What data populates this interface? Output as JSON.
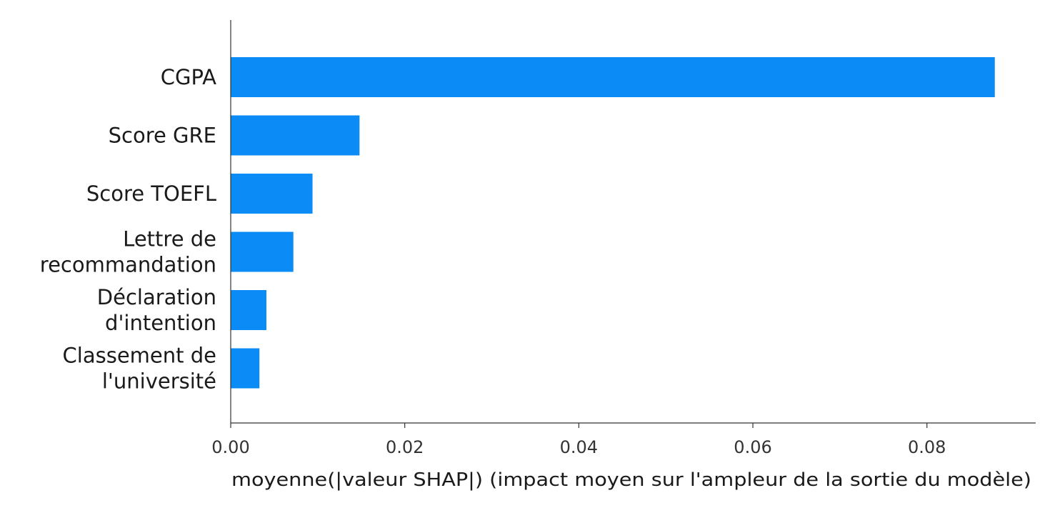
{
  "chart_data": {
    "type": "bar",
    "orientation": "horizontal",
    "categories": [
      [
        "CGPA"
      ],
      [
        "Score GRE"
      ],
      [
        "Score TOEFL"
      ],
      [
        "Lettre de",
        "recommandation"
      ],
      [
        "Déclaration",
        "d'intention"
      ],
      [
        "Classement de",
        "l'université"
      ]
    ],
    "values": [
      0.0878,
      0.0148,
      0.0094,
      0.0072,
      0.0041,
      0.0033
    ],
    "xlim": [
      0,
      0.0925
    ],
    "xticks": [
      0.0,
      0.02,
      0.04,
      0.06,
      0.08
    ],
    "xtick_labels": [
      "0.00",
      "0.02",
      "0.04",
      "0.06",
      "0.08"
    ],
    "xlabel": "moyenne(|valeur SHAP|) (impact moyen sur l'ampleur de la sortie du modèle)",
    "title": "",
    "ylabel": "",
    "grid": false,
    "bar_color": "#0a8bf5",
    "axis_color": "#333333"
  }
}
